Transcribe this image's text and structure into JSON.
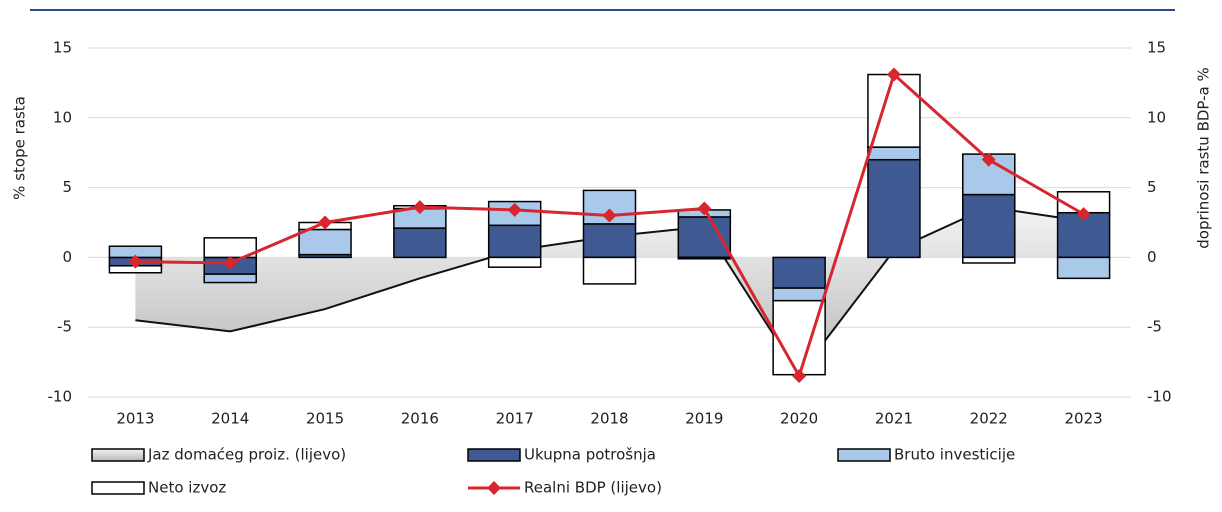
{
  "chart_data": {
    "type": "bar",
    "y_label": "% stope rasta",
    "y2_label": "doprinosi rastu BDP-a %",
    "categories": [
      "2013",
      "2014",
      "2015",
      "2016",
      "2017",
      "2018",
      "2019",
      "2020",
      "2021",
      "2022",
      "2023"
    ],
    "series": [
      {
        "name": "Jaz domaćeg proiz. (lijevo)",
        "type": "area",
        "color": "#c8c8c8",
        "values": [
          -4.5,
          -5.3,
          -3.7,
          -1.5,
          0.5,
          1.5,
          2.2,
          -8.4,
          0.5,
          3.6,
          2.6
        ]
      },
      {
        "name": "Ukupna potrošnja",
        "type": "bar",
        "axis": "y2",
        "color": "#3f5a92",
        "values": [
          -0.6,
          -1.2,
          0.2,
          2.1,
          2.3,
          2.4,
          2.9,
          -2.2,
          7.0,
          4.5,
          3.2
        ]
      },
      {
        "name": "Bruto investicije",
        "type": "bar",
        "axis": "y2",
        "color": "#a9c9ea",
        "values": [
          0.8,
          -0.6,
          1.8,
          1.4,
          1.7,
          2.4,
          0.5,
          -0.9,
          0.9,
          2.9,
          -1.5
        ]
      },
      {
        "name": "Neto izvoz",
        "type": "bar",
        "axis": "y2",
        "color": "#ffffff",
        "values": [
          -0.5,
          1.4,
          0.5,
          0.2,
          -0.7,
          -1.9,
          -0.1,
          -5.3,
          5.2,
          -0.4,
          1.5
        ]
      },
      {
        "name": "Realni BDP (lijevo)",
        "type": "line",
        "color": "#d7262e",
        "values": [
          -0.3,
          -0.4,
          2.5,
          3.6,
          3.4,
          3.0,
          3.5,
          -8.5,
          13.1,
          7.0,
          3.1
        ]
      }
    ],
    "ylim": [
      -10,
      15
    ],
    "yticks": [
      -10,
      -5,
      0,
      5,
      10,
      15
    ],
    "y2lim": [
      -10,
      15
    ],
    "y2ticks": [
      -10,
      -5,
      0,
      5,
      10,
      15
    ],
    "grid": true
  }
}
